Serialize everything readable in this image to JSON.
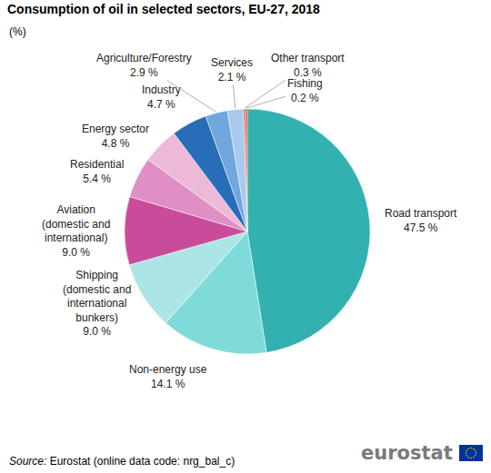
{
  "chart_data": {
    "type": "pie",
    "title": "Consumption of oil in selected sectors, EU-27, 2018",
    "subtitle": "(%)",
    "categories": [
      "Road transport",
      "Non-energy use",
      "Shipping (domestic and international bunkers)",
      "Aviation (domestic and international)",
      "Residential",
      "Energy sector",
      "Industry",
      "Agriculture/Forestry",
      "Services",
      "Other transport",
      "Fishing"
    ],
    "values": [
      47.5,
      14.1,
      9.0,
      9.0,
      5.4,
      4.8,
      4.7,
      2.9,
      2.1,
      0.3,
      0.2
    ],
    "value_labels": [
      "47.5 %",
      "14.1 %",
      "9.0 %",
      "9.0 %",
      "5.4 %",
      "4.8 %",
      "4.7 %",
      "2.9 %",
      "2.1 %",
      "0.3 %",
      "0.2 %"
    ],
    "colors": [
      "#33b1b0",
      "#7fdbda",
      "#ace5e5",
      "#c94c9b",
      "#df8fc3",
      "#ecb9d8",
      "#286db7",
      "#71a7df",
      "#a9c9ee",
      "#e8734a",
      "#d7261e"
    ],
    "data_labels": true,
    "source": "Source: Eurostat (online data code: nrg_bal_c)",
    "logo": "eurostat"
  }
}
